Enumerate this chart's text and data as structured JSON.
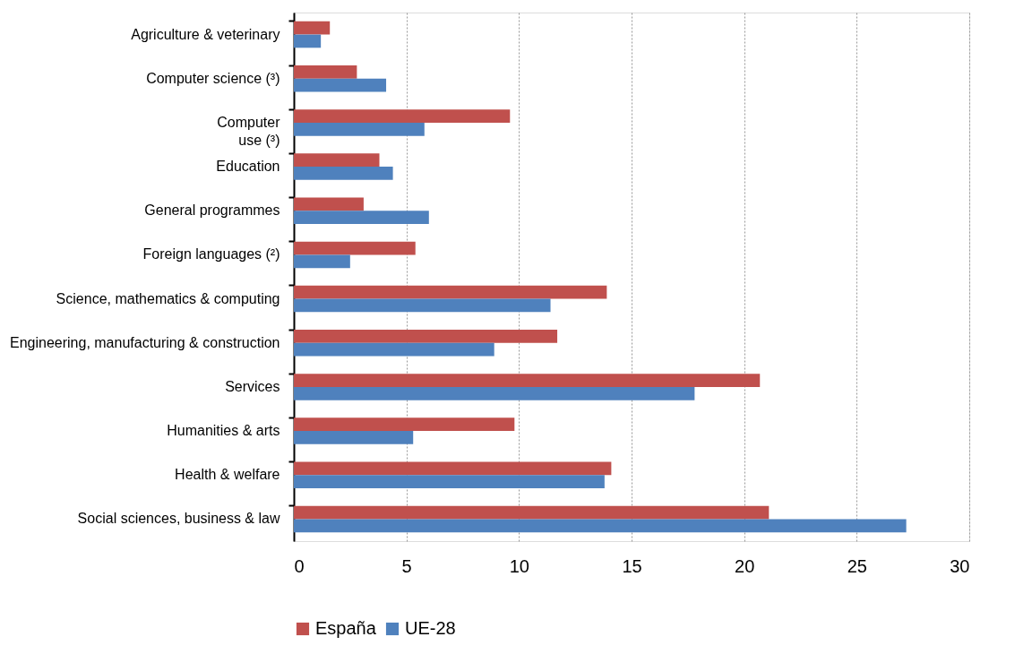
{
  "chart_data": {
    "type": "bar",
    "orientation": "horizontal",
    "categories": [
      "Agriculture & veterinary",
      "Computer science (³)",
      "Computer\nuse (³)",
      "Education",
      "General programmes",
      "Foreign languages (²)",
      "Science, mathematics & computing",
      "Engineering, manufacturing & construction",
      "Services",
      "Humanities & arts",
      "Health & welfare",
      "Social sciences, business & law"
    ],
    "series": [
      {
        "name": "España",
        "color": "#c0504d",
        "values": [
          1.6,
          2.8,
          9.6,
          3.8,
          3.1,
          5.4,
          13.9,
          11.7,
          20.7,
          9.8,
          14.1,
          21.1
        ]
      },
      {
        "name": "UE-28",
        "color": "#4f81bd",
        "values": [
          1.2,
          4.1,
          5.8,
          4.4,
          6.0,
          2.5,
          11.4,
          8.9,
          17.8,
          5.3,
          13.8,
          27.2
        ]
      }
    ],
    "xlim": [
      0,
      30
    ],
    "xticks": [
      0,
      5,
      10,
      15,
      20,
      25,
      30
    ],
    "grid": "x",
    "legend": "bottom"
  }
}
